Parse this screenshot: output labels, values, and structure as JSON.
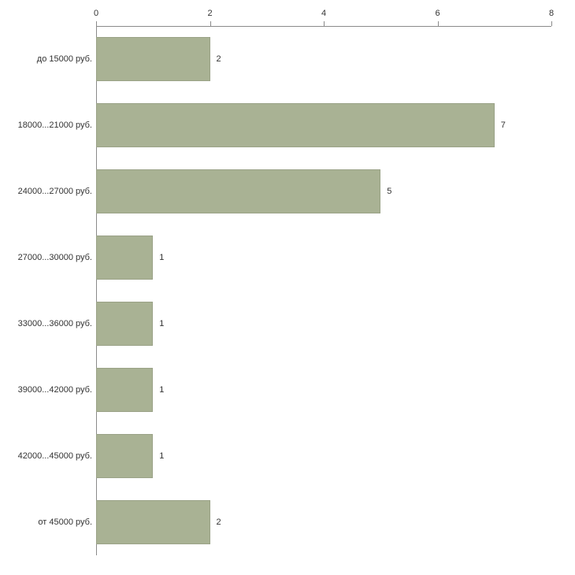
{
  "chart_data": {
    "type": "bar",
    "orientation": "horizontal",
    "title": "",
    "xlabel": "",
    "ylabel": "",
    "categories": [
      "до 15000 руб.",
      "18000...21000 руб.",
      "24000...27000 руб.",
      "27000...30000 руб.",
      "33000...36000 руб.",
      "39000...42000 руб.",
      "42000...45000 руб.",
      "от 45000 руб."
    ],
    "values": [
      2,
      7,
      5,
      1,
      1,
      1,
      1,
      2
    ],
    "xlim": [
      0,
      8
    ],
    "x_ticks": [
      0,
      2,
      4,
      6,
      8
    ],
    "grid": false,
    "legend": false,
    "bar_color": "#a9b294",
    "bar_border_color": "#9aa287",
    "axis_color": "#8a8a8a",
    "text_color": "#333333"
  }
}
